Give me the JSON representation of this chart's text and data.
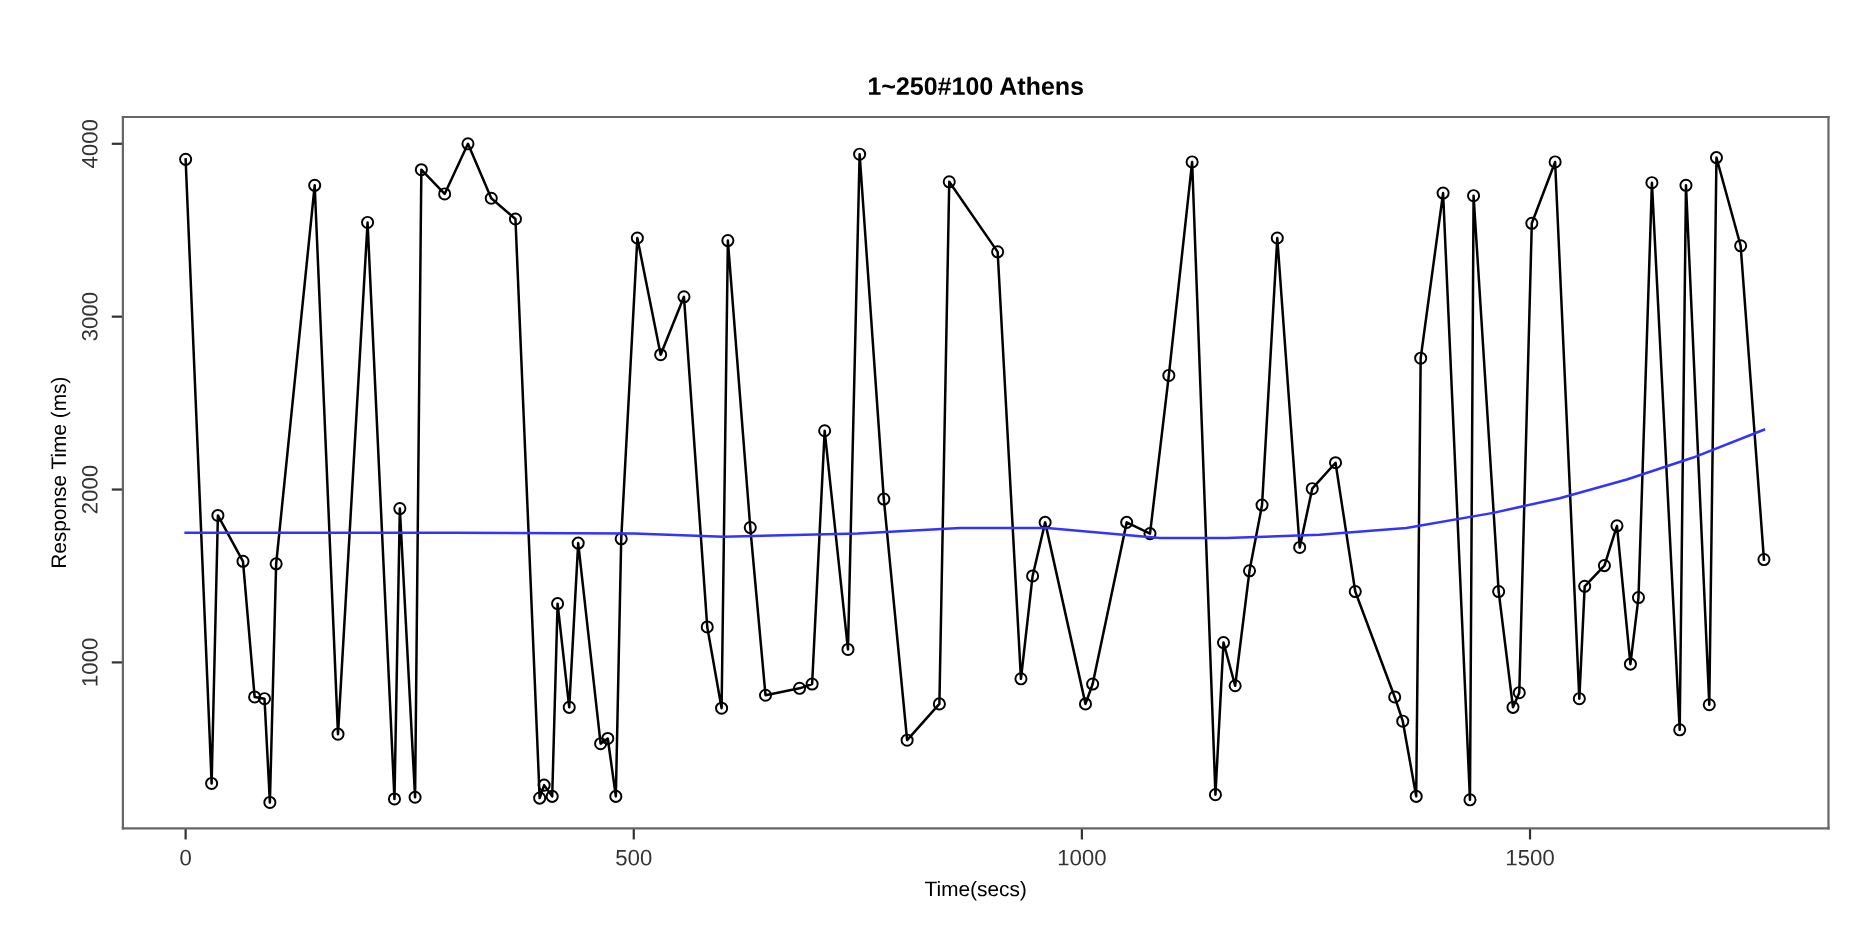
{
  "chart_data": {
    "type": "line",
    "title": "1~250#100 Athens",
    "xlabel": "Time(secs)",
    "ylabel": "Response Time (ms)",
    "xlim": [
      -70,
      1833
    ],
    "ylim": [
      40,
      4155
    ],
    "xticks": [
      0,
      500,
      1000,
      1500
    ],
    "yticks": [
      1000,
      2000,
      3000,
      4000
    ],
    "grid": false,
    "legend": false,
    "series": [
      {
        "color": "#000000",
        "marker": "circle",
        "x": [
          0,
          29,
          36,
          64,
          77,
          88,
          94,
          101,
          144,
          170,
          203,
          233,
          239,
          256,
          263,
          289,
          315,
          341,
          368,
          395,
          400,
          409,
          415,
          428,
          438,
          463,
          471,
          480,
          486,
          504,
          530,
          556,
          582,
          598,
          605,
          630,
          647,
          685,
          699,
          713,
          739,
          752,
          779,
          805,
          841,
          852,
          906,
          932,
          945,
          959,
          1004,
          1012,
          1050,
          1076,
          1097,
          1123,
          1149,
          1158,
          1171,
          1187,
          1201,
          1218,
          1243,
          1257,
          1283,
          1305,
          1349,
          1358,
          1373,
          1378,
          1403,
          1433,
          1437,
          1465,
          1481,
          1488,
          1502,
          1528,
          1555,
          1561,
          1583,
          1597,
          1612,
          1621,
          1636,
          1667,
          1674,
          1700,
          1708,
          1735,
          1761
        ],
        "values": [
          3910,
          300,
          1850,
          1585,
          800,
          790,
          190,
          1570,
          3760,
          585,
          3545,
          210,
          1890,
          220,
          3850,
          3710,
          4000,
          3685,
          3565,
          215,
          290,
          225,
          1340,
          740,
          1690,
          530,
          560,
          225,
          1715,
          3455,
          2780,
          3115,
          1205,
          735,
          3440,
          1780,
          810,
          850,
          875,
          2340,
          1075,
          3940,
          1945,
          550,
          760,
          3780,
          3375,
          905,
          1500,
          1810,
          760,
          875,
          1810,
          1745,
          2660,
          3895,
          235,
          1115,
          865,
          1530,
          1910,
          3455,
          1665,
          2005,
          2155,
          1410,
          800,
          660,
          225,
          2760,
          3715,
          205,
          3700,
          1410,
          740,
          825,
          3540,
          3895,
          790,
          1440,
          1560,
          1790,
          990,
          1375,
          3775,
          610,
          3760,
          755,
          3920,
          3410,
          1595
        ]
      },
      {
        "color": "#3333ff",
        "marker": "none",
        "x": [
          0,
          300,
          500,
          600,
          750,
          864,
          961,
          1087,
          1161,
          1265,
          1362,
          1459,
          1533,
          1608,
          1682,
          1761
        ],
        "values": [
          1750,
          1750,
          1745,
          1727,
          1745,
          1777,
          1777,
          1719,
          1719,
          1738,
          1777,
          1865,
          1950,
          2058,
          2185,
          2346
        ]
      }
    ]
  }
}
